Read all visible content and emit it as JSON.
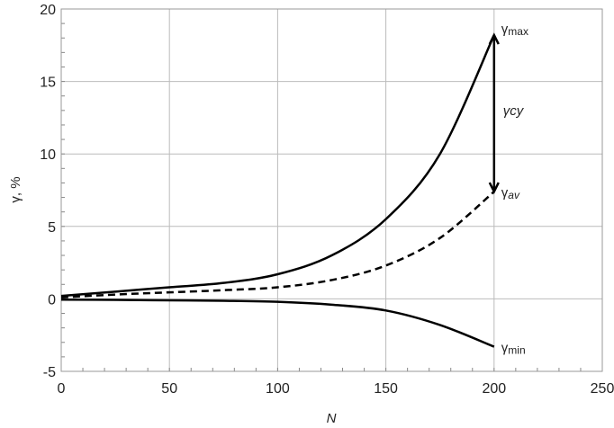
{
  "chart_data": {
    "type": "line",
    "title": "",
    "xlabel": "N",
    "ylabel": "γ, %",
    "xlim": [
      0,
      250
    ],
    "ylim": [
      -5,
      20
    ],
    "xticks": [
      0,
      50,
      100,
      150,
      200,
      250
    ],
    "yticks": [
      -5,
      0,
      5,
      10,
      15,
      20
    ],
    "xtick_labels": [
      "0",
      "50",
      "100",
      "150",
      "200",
      "250"
    ],
    "ytick_labels": [
      "-5",
      "0",
      "5",
      "10",
      "15",
      "20"
    ],
    "grid": true,
    "legend": "none",
    "series": [
      {
        "name": "γmax",
        "style": "solid",
        "x": [
          0,
          25,
          50,
          75,
          100,
          125,
          150,
          175,
          200
        ],
        "values": [
          0.2,
          0.5,
          0.8,
          1.1,
          1.7,
          3.0,
          5.5,
          10.0,
          18.2
        ]
      },
      {
        "name": "γav",
        "style": "dashed",
        "x": [
          0,
          25,
          50,
          75,
          100,
          125,
          150,
          175,
          200
        ],
        "values": [
          0.1,
          0.3,
          0.45,
          0.6,
          0.8,
          1.3,
          2.3,
          4.2,
          7.4
        ]
      },
      {
        "name": "γmin",
        "style": "solid",
        "x": [
          0,
          25,
          50,
          75,
          100,
          125,
          150,
          175,
          200
        ],
        "values": [
          -0.05,
          -0.07,
          -0.1,
          -0.13,
          -0.2,
          -0.4,
          -0.8,
          -1.8,
          -3.3
        ]
      }
    ],
    "annotations": [
      {
        "symbol": "γ",
        "sub": "max",
        "italic": false,
        "at": [
          200,
          18.2
        ]
      },
      {
        "symbol": "γ",
        "sub": "cy",
        "italic": true,
        "at": [
          200,
          12.8
        ]
      },
      {
        "symbol": "γ",
        "sub": "av",
        "italic": true,
        "at": [
          200,
          7.4
        ]
      },
      {
        "symbol": "γ",
        "sub": "min",
        "italic": false,
        "at": [
          200,
          -3.3
        ]
      }
    ],
    "arrow": {
      "label": "γcy",
      "x": 200,
      "from": 7.4,
      "to": 18.2
    }
  }
}
